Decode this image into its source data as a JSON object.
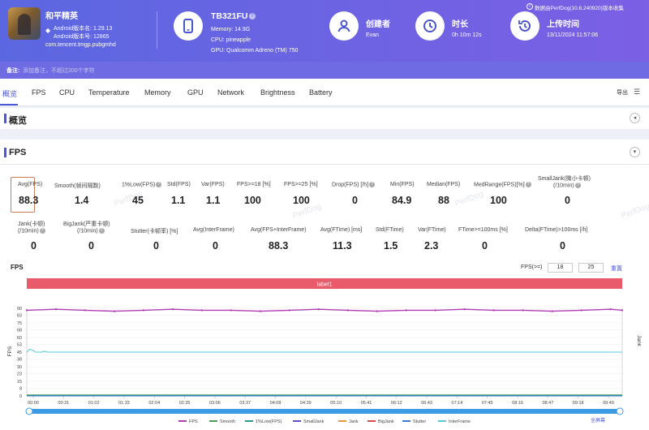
{
  "header": {
    "app": {
      "name": "和平精英",
      "android_version": "Android版本名: 1.29.13",
      "android_code": "Android版本号: 12865",
      "package": "com.tencent.tmgp.pubgmhd"
    },
    "device": {
      "name": "TB321FU",
      "memory": "Memory: 14.9G",
      "cpu": "CPU: pineapple",
      "gpu": "GPU: Qualcomm Adreno (TM) 750"
    },
    "creator": {
      "label": "创建者",
      "value": "Evan"
    },
    "duration": {
      "label": "时长",
      "value": "0h 10m 12s"
    },
    "upload": {
      "label": "上传时间",
      "value": "13/11/2024 11:57:06"
    },
    "source": "数据由PerfDog(10.6.240920)版本收集"
  },
  "note": {
    "label": "备注:",
    "placeholder": "添加备注，不超过200个字符"
  },
  "tabs": [
    "概览",
    "FPS",
    "CPU",
    "Temperature",
    "Memory",
    "GPU",
    "Network",
    "Brightness",
    "Battery"
  ],
  "export_label": "导出",
  "overview": {
    "title": "概览"
  },
  "fps": {
    "title": "FPS",
    "stats_row1": [
      {
        "label": "Avg(FPS)",
        "value": "88.3"
      },
      {
        "label": "Smooth(帧间隔数)",
        "value": "1.4"
      },
      {
        "label": "1%Low(FPS)",
        "value": "45"
      },
      {
        "label": "Std(FPS)",
        "value": "1.1"
      },
      {
        "label": "Var(FPS)",
        "value": "1.1"
      },
      {
        "label": "FPS>=18 [%]",
        "value": "100"
      },
      {
        "label": "FPS>=25 [%]",
        "value": "100"
      },
      {
        "label": "Drop(FPS) [/h]",
        "value": "0"
      },
      {
        "label": "Min(FPS)",
        "value": "84.9"
      },
      {
        "label": "Median(FPS)",
        "value": "88"
      },
      {
        "label": "MedRange(FPS)[%]",
        "value": "100"
      },
      {
        "label": "SmallJank(微小卡顿)",
        "label2": "(/10min)",
        "value": "0"
      }
    ],
    "stats_row2": [
      {
        "label": "Jank(卡顿)",
        "label2": "(/10min)",
        "value": "0"
      },
      {
        "label": "BigJank(严重卡顿)",
        "label2": "(/10min)",
        "value": "0"
      },
      {
        "label": "Stutter(卡顿率) [%]",
        "value": "0"
      },
      {
        "label": "Avg(InterFrame)",
        "value": "0"
      },
      {
        "label": "Avg(FPS+InterFrame)",
        "value": "88.3"
      },
      {
        "label": "Avg(FTime) [ms]",
        "value": "11.3"
      },
      {
        "label": "Std(FTime)",
        "value": "1.5"
      },
      {
        "label": "Var(FTime)",
        "value": "2.3"
      },
      {
        "label": "FTime>=100ms [%]",
        "value": "0"
      },
      {
        "label": "Delta(FTime)>100ms [/h]",
        "value": "0"
      }
    ],
    "chart_title": "FPS",
    "threshold_label": "FPS(>=)",
    "threshold1": "18",
    "threshold2": "25",
    "reset_label": "重置",
    "full_screen_label": "全屏幕",
    "watermark": "PerfDog"
  },
  "chart_data": {
    "type": "line",
    "band_label": "label1",
    "ylabel": "FPS",
    "y2label": "Jank",
    "ylim": [
      0,
      90
    ],
    "yticks": [
      0,
      8,
      15,
      23,
      30,
      38,
      45,
      53,
      60,
      68,
      75,
      83,
      90
    ],
    "xticks": [
      "00:00",
      "00:31",
      "01:02",
      "01:33",
      "02:04",
      "02:35",
      "03:06",
      "03:37",
      "04:08",
      "04:39",
      "05:10",
      "05:41",
      "06:12",
      "06:43",
      "07:14",
      "07:45",
      "08:16",
      "08:47",
      "09:18",
      "09:49"
    ],
    "grid": true,
    "legend_position": "bottom",
    "series": [
      {
        "name": "FPS",
        "color": "#b23cb2",
        "x": [
          0,
          30,
          60,
          90,
          120,
          150,
          180,
          210,
          240,
          270,
          300,
          330,
          360,
          390,
          420,
          450,
          480,
          510,
          540,
          570,
          600,
          612
        ],
        "values": [
          88,
          89,
          88,
          87,
          88,
          89,
          88,
          88,
          87,
          88,
          89,
          88,
          87,
          88,
          88,
          89,
          88,
          88,
          87,
          88,
          89,
          88
        ]
      },
      {
        "name": "Smooth",
        "color": "#4a9a5a",
        "x": [
          0,
          612
        ],
        "values": [
          1,
          1
        ]
      },
      {
        "name": "1%Low(FPS)",
        "color": "#2a9a8a",
        "x": [
          0,
          612
        ],
        "values": [
          0.5,
          0.5
        ]
      },
      {
        "name": "SmallJank",
        "color": "#5a50d0",
        "x": [
          0,
          612
        ],
        "values": [
          0,
          0
        ]
      },
      {
        "name": "Jank",
        "color": "#e39a3a",
        "x": [
          0,
          612
        ],
        "values": [
          0,
          0
        ]
      },
      {
        "name": "BigJank",
        "color": "#d64a4a",
        "x": [
          0,
          612
        ],
        "values": [
          0,
          0
        ]
      },
      {
        "name": "Stutter",
        "color": "#3a7ad0",
        "x": [
          0,
          612
        ],
        "values": [
          0,
          0
        ]
      },
      {
        "name": "InterFrame",
        "color": "#55c8d8",
        "x": [
          0,
          3,
          6,
          9,
          12,
          15,
          18,
          21,
          24,
          612
        ],
        "values": [
          45,
          48,
          47,
          45,
          45,
          45,
          46,
          45,
          45,
          45
        ]
      }
    ]
  }
}
